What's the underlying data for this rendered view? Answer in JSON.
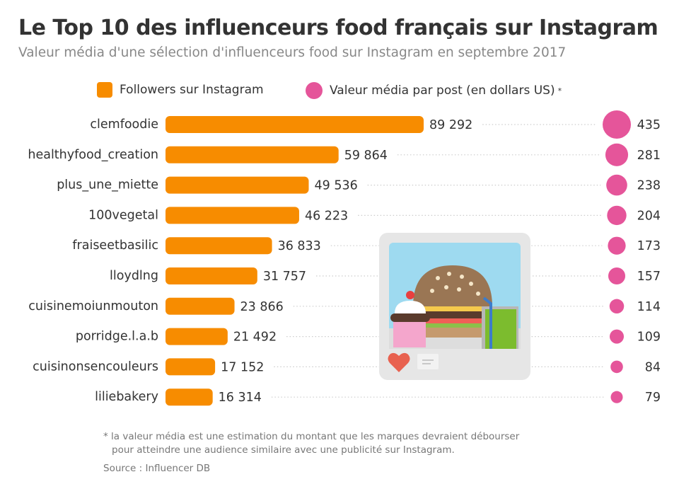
{
  "header": {
    "title": "Le Top 10 des influenceurs food français sur Instagram",
    "subtitle": "Valeur média d'une sélection d'influenceurs food sur Instagram en septembre 2017"
  },
  "legend": {
    "followers_label": "Followers sur Instagram",
    "media_value_label": "Valeur média par post (en dollars US)",
    "media_value_marker": "*",
    "position": "top-center"
  },
  "footnote": {
    "line1": "* la valeur média est une estimation du montant que les marques devraient débourser",
    "line2": "pour atteindre une audience similaire avec une publicité sur Instagram."
  },
  "source": "Source : Influencer DB",
  "colors": {
    "bar": "#f78c00",
    "bubble": "#e5559a",
    "text": "#333333",
    "muted": "#888888",
    "leader": "#cccccc"
  },
  "illustration": {
    "icon": "instagram-food-post-icon",
    "heart_icon": "heart-icon",
    "comment_icon": "comment-icon"
  },
  "chart_data": {
    "type": "bar",
    "orientation": "horizontal",
    "categories": [
      "clemfoodie",
      "healthyfood_creation",
      "plus_une_miette",
      "100vegetal",
      "fraiseetbasilic",
      "lloydlng",
      "cuisinemoiunmouton",
      "porridge.l.a.b",
      "cuisinonsencouleurs",
      "liliebakery"
    ],
    "series": [
      {
        "name": "Followers sur Instagram",
        "values": [
          89292,
          59864,
          49536,
          46223,
          36833,
          31757,
          23866,
          21492,
          17152,
          16314
        ],
        "labels": [
          "89 292",
          "59 864",
          "49 536",
          "46 223",
          "36 833",
          "31 757",
          "23 866",
          "21 492",
          "17 152",
          "16 314"
        ]
      },
      {
        "name": "Valeur média par post (en dollars US)",
        "values": [
          435,
          281,
          238,
          204,
          173,
          157,
          114,
          109,
          84,
          79
        ],
        "labels": [
          "435",
          "281",
          "238",
          "204",
          "173",
          "157",
          "114",
          "109",
          "84",
          "79"
        ],
        "mark": "bubble"
      }
    ],
    "title": "Le Top 10 des influenceurs food français sur Instagram",
    "subtitle": "Valeur média d'une sélection d'influenceurs food sur Instagram en septembre 2017",
    "xlabel": "",
    "ylabel": "",
    "grid": false
  }
}
